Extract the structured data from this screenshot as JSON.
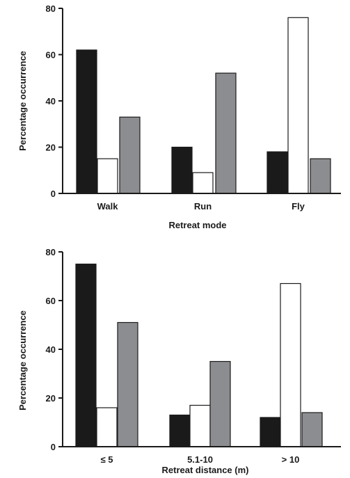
{
  "chart_data": [
    {
      "type": "bar",
      "categories": [
        "Walk",
        "Run",
        "Fly"
      ],
      "series": [
        {
          "color": "#1a1a1a",
          "values": [
            62,
            20,
            18
          ]
        },
        {
          "color": "#ffffff",
          "values": [
            15,
            9,
            76
          ]
        },
        {
          "color": "#8c8d90",
          "values": [
            33,
            52,
            15
          ]
        }
      ],
      "xlabel": "Retreat mode",
      "ylabel": "Percentage occurrence",
      "ylim": [
        0,
        80
      ],
      "yticks": [
        "0",
        "20",
        "40",
        "60",
        "80"
      ],
      "grid": false,
      "legend": "none"
    },
    {
      "type": "bar",
      "categories": [
        "≤ 5",
        "5.1-10",
        "> 10"
      ],
      "series": [
        {
          "color": "#1a1a1a",
          "values": [
            75,
            13,
            12
          ]
        },
        {
          "color": "#ffffff",
          "values": [
            16,
            17,
            67
          ]
        },
        {
          "color": "#8c8d90",
          "values": [
            51,
            35,
            14
          ]
        }
      ],
      "xlabel": "Retreat distance (m)",
      "ylabel": "Percentage occurrence",
      "ylim": [
        0,
        80
      ],
      "yticks": [
        "0",
        "20",
        "40",
        "60",
        "80"
      ],
      "grid": false,
      "legend": "none"
    }
  ]
}
